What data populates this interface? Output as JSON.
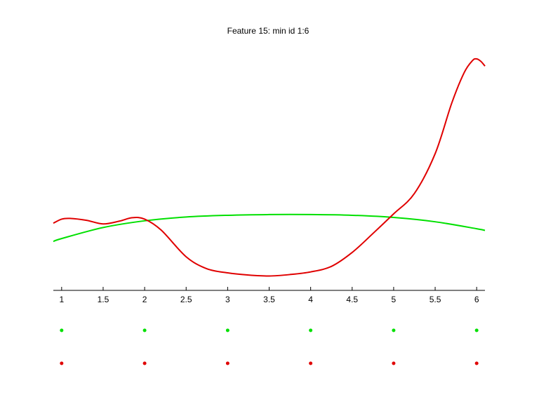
{
  "chart_data": {
    "type": "line",
    "title": "Feature 15: min id 1:6",
    "xlabel": "",
    "ylabel": "",
    "xlim": [
      0.9,
      6.1
    ],
    "ylim": [
      0,
      1
    ],
    "grid": false,
    "x_ticks": [
      1,
      1.5,
      2,
      2.5,
      3,
      3.5,
      4,
      4.5,
      5,
      5.5,
      6
    ],
    "x_tick_labels": [
      "1",
      "1.5",
      "2",
      "2.5",
      "3",
      "3.5",
      "4",
      "4.5",
      "5",
      "5.5",
      "6"
    ],
    "series": [
      {
        "color": "#00e000",
        "x": [
          0.9,
          1.0,
          1.5,
          2.0,
          2.5,
          3.0,
          3.5,
          4.0,
          4.5,
          5.0,
          5.5,
          6.0,
          6.1
        ],
        "y": [
          0.204,
          0.216,
          0.262,
          0.29,
          0.306,
          0.313,
          0.316,
          0.316,
          0.313,
          0.304,
          0.286,
          0.257,
          0.25
        ]
      },
      {
        "color": "#e00000",
        "x": [
          0.9,
          1.0,
          1.1,
          1.3,
          1.5,
          1.7,
          1.85,
          2.0,
          2.2,
          2.5,
          2.75,
          3.0,
          3.25,
          3.5,
          3.75,
          4.0,
          4.25,
          4.5,
          4.75,
          5.0,
          5.25,
          5.5,
          5.7,
          5.85,
          5.95,
          6.0,
          6.05,
          6.1
        ],
        "y": [
          0.28,
          0.297,
          0.3,
          0.292,
          0.277,
          0.289,
          0.303,
          0.297,
          0.251,
          0.14,
          0.09,
          0.073,
          0.064,
          0.06,
          0.066,
          0.077,
          0.1,
          0.158,
          0.237,
          0.319,
          0.404,
          0.57,
          0.781,
          0.908,
          0.958,
          0.965,
          0.955,
          0.935
        ]
      }
    ],
    "marker_rows": [
      {
        "color": "#00e000",
        "x": [
          1,
          2,
          3,
          4,
          5,
          6
        ]
      },
      {
        "color": "#e00000",
        "x": [
          1,
          2,
          3,
          4,
          5,
          6
        ]
      }
    ]
  }
}
